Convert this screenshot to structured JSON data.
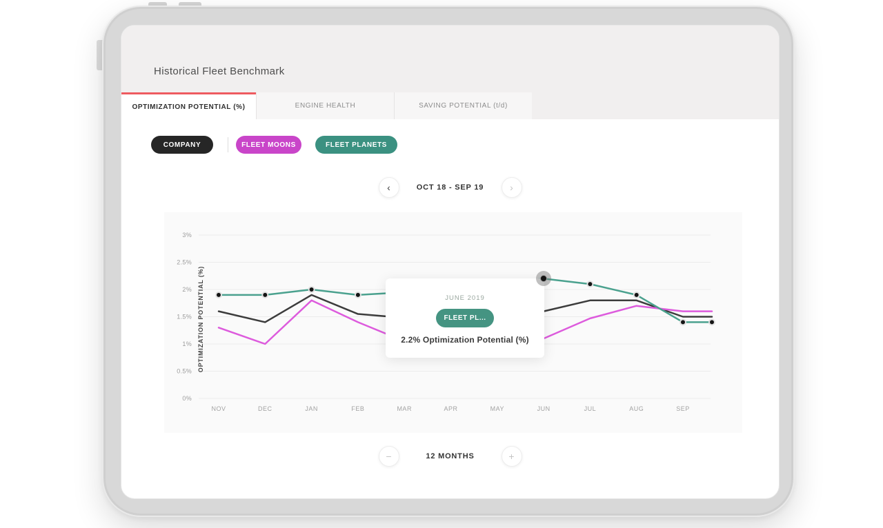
{
  "header": {
    "title": "Historical Fleet Benchmark"
  },
  "tabs": [
    {
      "label": "OPTIMIZATION POTENTIAL (%)",
      "active": true
    },
    {
      "label": "ENGINE HEALTH",
      "active": false
    },
    {
      "label": "SAVING POTENTIAL (t/d)",
      "active": false
    }
  ],
  "filters": {
    "company": "COMPANY",
    "fleet_moons": "FLEET MOONS",
    "fleet_planets": "FLEET PLANETS"
  },
  "date_nav": {
    "range": "OCT 18 - SEP 19",
    "prev_icon": "‹",
    "next_icon": "›"
  },
  "months_nav": {
    "label": "12 MONTHS",
    "minus_icon": "−",
    "plus_icon": "+"
  },
  "tooltip": {
    "date": "JUNE 2019",
    "series": "FLEET PL...",
    "value_text": "2.2% Optimization Potential (%)"
  },
  "colors": {
    "accent_red": "#ee5a5f",
    "company_pill": "#262626",
    "moons_pill": "#c945c9",
    "planets_pill": "#3b9181",
    "tooltip_pill": "#459482"
  },
  "chart_data": {
    "type": "line",
    "title": "Historical Fleet Benchmark - Optimization Potential",
    "ylabel": "OPTIMIZATION POTENTIAL (%)",
    "x_labels": [
      "NOV",
      "DEC",
      "JAN",
      "FEB",
      "MAR",
      "APR",
      "MAY",
      "JUN",
      "JUL",
      "AUG",
      "SEP"
    ],
    "y_ticks": [
      "3%",
      "2.5%",
      "2%",
      "1.5%",
      "1%",
      "0.5%",
      "0%"
    ],
    "ylim": [
      0,
      3
    ],
    "grid": true,
    "legend_position": "none",
    "series": [
      {
        "name": "COMPANY",
        "color": "#3c3c3c",
        "values": [
          1.6,
          1.4,
          1.9,
          1.55,
          1.48,
          1.45,
          1.5,
          1.6,
          1.8,
          1.8,
          1.5
        ],
        "end_value": 1.5,
        "markers": false
      },
      {
        "name": "FLEET MOONS",
        "color": "#dd5bdd",
        "values": [
          1.3,
          1.0,
          1.8,
          1.4,
          1.05,
          1.0,
          1.05,
          1.1,
          1.47,
          1.7,
          1.6
        ],
        "end_value": 1.6,
        "markers": false
      },
      {
        "name": "FLEET PLANETS",
        "color": "#4aa18e",
        "values": [
          1.9,
          1.9,
          2.0,
          1.9,
          1.95,
          2.0,
          2.1,
          2.2,
          2.1,
          1.9,
          1.4
        ],
        "end_value": 1.4,
        "markers": true,
        "highlight_index": 7,
        "highlight_value": 2.2
      }
    ]
  }
}
